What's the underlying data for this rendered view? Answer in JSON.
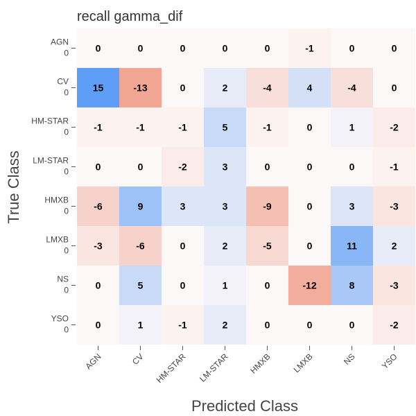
{
  "chart_data": {
    "type": "heatmap",
    "title": "recall gamma_dif",
    "xlabel": "Predicted Class",
    "ylabel": "True Class",
    "x_categories": [
      "AGN",
      "CV",
      "HM-STAR",
      "LM-STAR",
      "HMXB",
      "LMXB",
      "NS",
      "YSO"
    ],
    "y_categories": [
      "AGN",
      "CV",
      "HM-STAR",
      "LM-STAR",
      "HMXB",
      "LMXB",
      "NS",
      "YSO"
    ],
    "y_sublabels": [
      "0",
      "0",
      "0",
      "0",
      "0",
      "0",
      "0",
      "0"
    ],
    "values": [
      [
        0,
        0,
        0,
        0,
        0,
        -1,
        0,
        0
      ],
      [
        15,
        -13,
        0,
        2,
        -4,
        4,
        -4,
        0
      ],
      [
        -1,
        -1,
        -1,
        5,
        -1,
        0,
        1,
        -2
      ],
      [
        0,
        0,
        -2,
        3,
        0,
        0,
        0,
        -1
      ],
      [
        -6,
        9,
        3,
        3,
        -9,
        0,
        3,
        -3
      ],
      [
        -3,
        -6,
        0,
        2,
        -5,
        0,
        11,
        2
      ],
      [
        0,
        5,
        0,
        1,
        0,
        -12,
        8,
        -3
      ],
      [
        0,
        1,
        -1,
        2,
        0,
        0,
        0,
        -2
      ]
    ],
    "color_range": [
      -15,
      15
    ],
    "colors": {
      "positive": "#5f9ef7",
      "negative": "#ef9a85",
      "neutral": "#fdf8f8"
    },
    "grid": false,
    "colorbar": false
  }
}
